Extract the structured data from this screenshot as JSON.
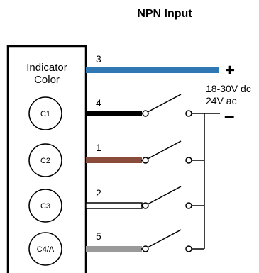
{
  "diagram": {
    "title": "NPN Input",
    "box_label_line1": "Indicator",
    "box_label_line2": "Color",
    "indicators": [
      {
        "id": "C1",
        "wire_number": "4",
        "wire_color": "#000000"
      },
      {
        "id": "C2",
        "wire_number": "1",
        "wire_color": "#8a4b3a"
      },
      {
        "id": "C3",
        "wire_number": "2",
        "wire_color": "#ffffff"
      },
      {
        "id": "C4/A",
        "wire_number": "5",
        "wire_color": "#999999"
      }
    ],
    "supply": {
      "wire_number": "3",
      "wire_color": "#2f78b4",
      "plus": "+",
      "minus": "–",
      "voltage_line1": "18-30V dc",
      "voltage_line2": "24V ac"
    }
  }
}
